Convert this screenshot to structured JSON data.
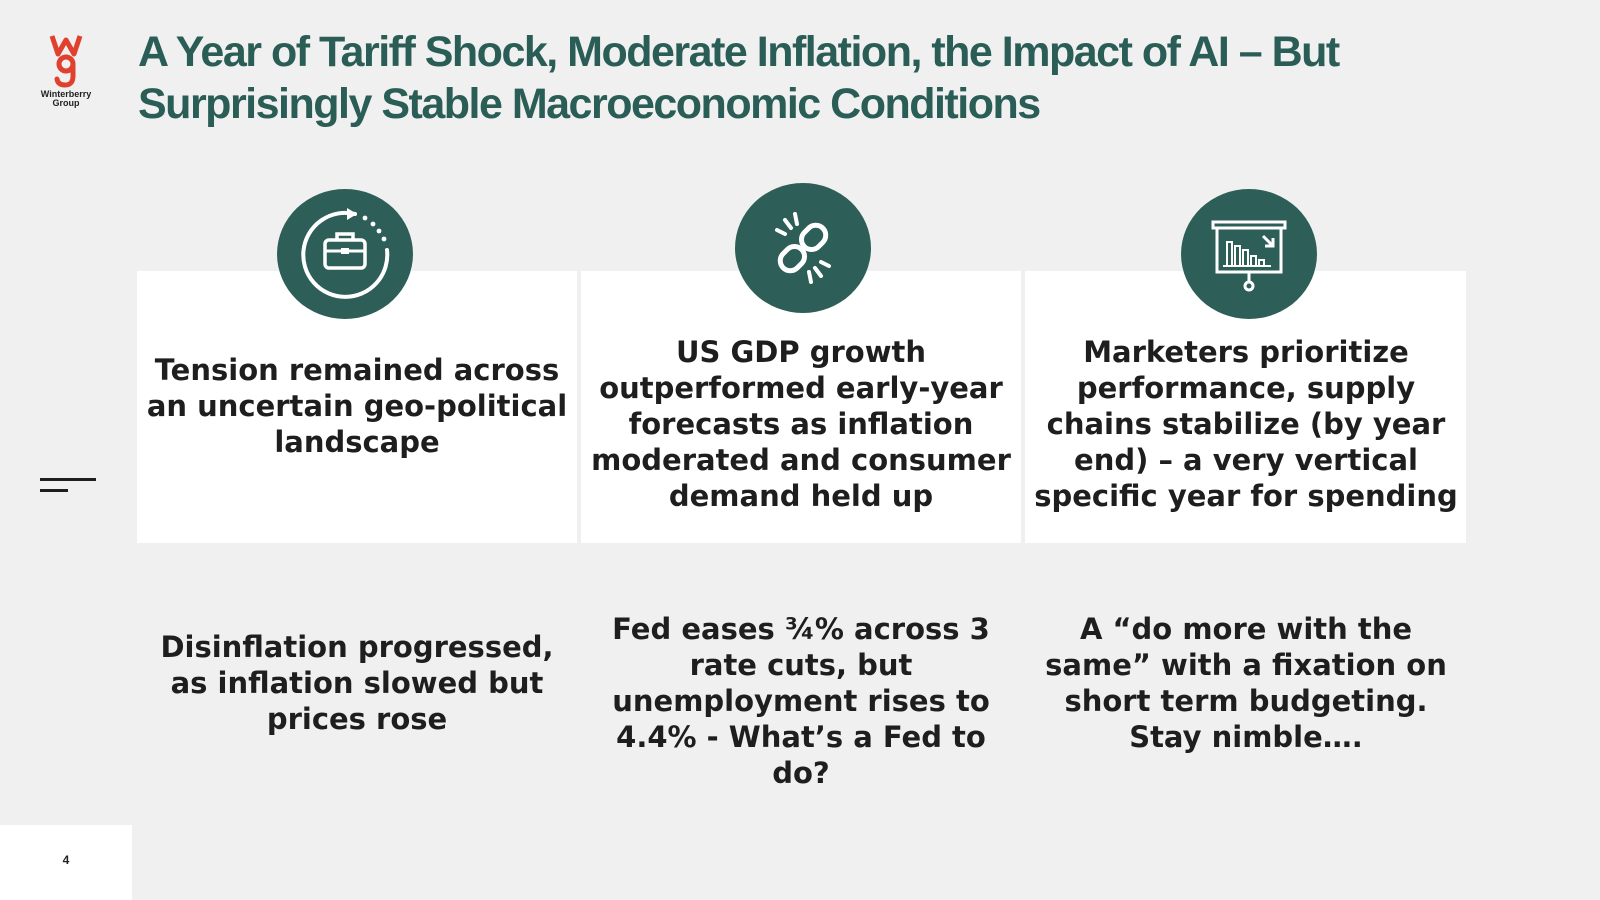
{
  "brand": {
    "logo_text": "Winterberry Group",
    "logo_color": "#e0412f"
  },
  "title": "A Year of Tariff Shock, Moderate Inflation, the Impact of AI – But Surprisingly Stable Macroeconomic Conditions",
  "colors": {
    "accent": "#2d5f58",
    "title": "#2b5d57",
    "panel": "#ffffff",
    "background": "#f0f0f0"
  },
  "columns": [
    {
      "icon": "briefcase-cycle-icon",
      "headline": "Tension remained across an uncertain geo-political landscape",
      "detail": "Disinflation progressed, as inflation slowed but prices rose"
    },
    {
      "icon": "broken-link-icon",
      "headline": "US GDP growth outperformed early-year forecasts as inflation moderated and consumer demand held up",
      "detail": "Fed eases ¾% across 3 rate cuts, but unemployment rises to 4.4% - What’s a Fed to do?"
    },
    {
      "icon": "presentation-chart-icon",
      "headline": "Marketers prioritize performance, supply chains stabilize (by year end) – a very vertical specific year for spending",
      "detail": "A “do more with the same” with a fixation on short term budgeting.   Stay nimble…."
    }
  ],
  "footer": {
    "page_number": "4"
  }
}
